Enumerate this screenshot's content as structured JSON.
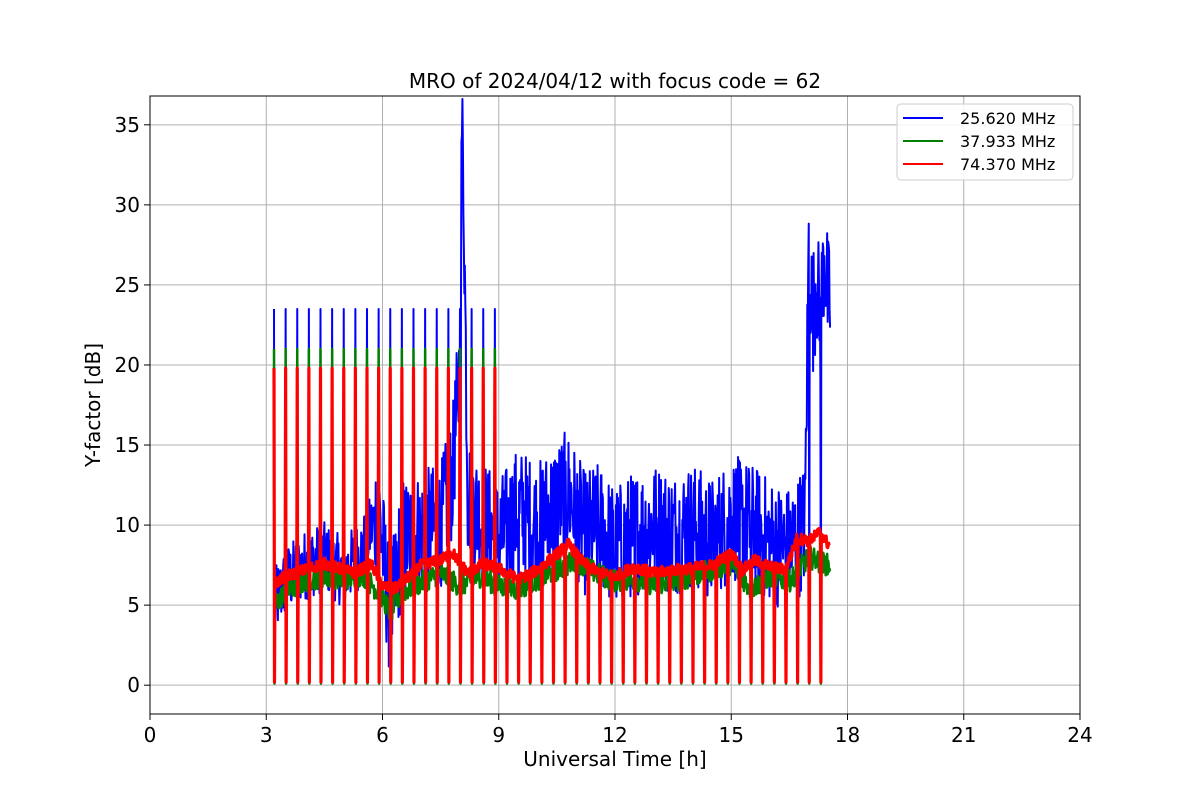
{
  "chart_data": {
    "type": "line",
    "title": "MRO of 2024/04/12 with focus code = 62",
    "xlabel": "Universal Time [h]",
    "ylabel": "Y-factor [dB]",
    "xlim": [
      0,
      24
    ],
    "ylim": [
      -1.8,
      36.8
    ],
    "xticks": [
      0,
      3,
      6,
      9,
      12,
      15,
      18,
      21,
      24
    ],
    "yticks": [
      0,
      5,
      10,
      15,
      20,
      25,
      30,
      35
    ],
    "grid": true,
    "legend_position": "top-right",
    "pulse_period_h": 0.3,
    "pulse_start_h": 3.2,
    "data_end_h": 17.55,
    "series": [
      {
        "name": "25.620 MHz",
        "color": "#0000ff",
        "pulse_high": 23.5,
        "pulse_low": 0.2,
        "x": [
          3.2,
          3.5,
          4.0,
          4.5,
          5.0,
          5.5,
          5.9,
          6.2,
          6.5,
          7.0,
          7.5,
          7.8,
          8.0,
          8.05,
          8.1,
          8.2,
          8.5,
          9.0,
          9.5,
          10.0,
          10.5,
          10.8,
          11.2,
          11.6,
          12.0,
          12.5,
          13.0,
          13.5,
          14.0,
          14.5,
          15.0,
          15.5,
          16.0,
          16.5,
          16.9,
          17.0,
          17.1,
          17.2,
          17.3,
          17.4,
          17.5
        ],
        "values": [
          5.0,
          6.5,
          7.5,
          8.0,
          7.0,
          8.5,
          11.0,
          4.0,
          9.0,
          9.5,
          10.0,
          13.0,
          20.0,
          35.0,
          30.0,
          12.0,
          10.5,
          9.0,
          11.0,
          10.0,
          11.5,
          12.0,
          9.5,
          10.0,
          8.5,
          9.5,
          10.0,
          9.5,
          10.0,
          9.0,
          10.5,
          10.0,
          9.0,
          8.5,
          10.0,
          27.5,
          23.0,
          25.5,
          22.5,
          27.0,
          24.0
        ]
      },
      {
        "name": "37.933 MHz",
        "color": "#008000",
        "pulse_high": 21.0,
        "pulse_low": 0.1,
        "x": [
          3.2,
          3.5,
          4.0,
          4.5,
          5.0,
          5.5,
          6.0,
          6.2,
          6.5,
          7.0,
          7.5,
          8.0,
          8.5,
          9.0,
          9.5,
          10.0,
          10.5,
          11.0,
          11.5,
          12.0,
          12.5,
          13.0,
          13.5,
          14.0,
          14.5,
          15.0,
          15.5,
          16.0,
          16.5,
          17.0,
          17.5
        ],
        "values": [
          5.0,
          5.8,
          6.5,
          6.8,
          6.6,
          6.9,
          5.5,
          4.5,
          5.8,
          6.4,
          7.0,
          6.2,
          6.8,
          6.2,
          6.0,
          6.6,
          7.2,
          7.8,
          7.0,
          6.5,
          6.6,
          6.3,
          6.5,
          6.8,
          7.2,
          7.6,
          6.0,
          6.8,
          6.5,
          8.0,
          7.5
        ]
      },
      {
        "name": "74.370 MHz",
        "color": "#ff0000",
        "pulse_high": 19.8,
        "pulse_low": 0.2,
        "x": [
          3.2,
          3.5,
          4.0,
          4.5,
          5.0,
          5.3,
          5.7,
          6.0,
          6.3,
          6.7,
          7.0,
          7.5,
          7.8,
          8.2,
          8.6,
          9.0,
          9.5,
          10.0,
          10.5,
          10.8,
          11.2,
          11.6,
          12.0,
          12.5,
          13.0,
          13.5,
          14.0,
          14.5,
          15.0,
          15.3,
          15.6,
          16.0,
          16.4,
          16.7,
          17.0,
          17.3,
          17.5
        ],
        "values": [
          6.3,
          6.8,
          7.2,
          7.6,
          7.2,
          7.0,
          7.6,
          6.2,
          6.0,
          6.8,
          7.5,
          7.8,
          8.3,
          7.0,
          7.6,
          7.3,
          6.6,
          7.2,
          8.2,
          8.8,
          7.6,
          7.0,
          6.8,
          7.4,
          7.0,
          7.2,
          7.3,
          7.5,
          8.2,
          7.2,
          7.8,
          7.4,
          7.2,
          9.2,
          9.0,
          9.6,
          8.8
        ]
      }
    ]
  }
}
